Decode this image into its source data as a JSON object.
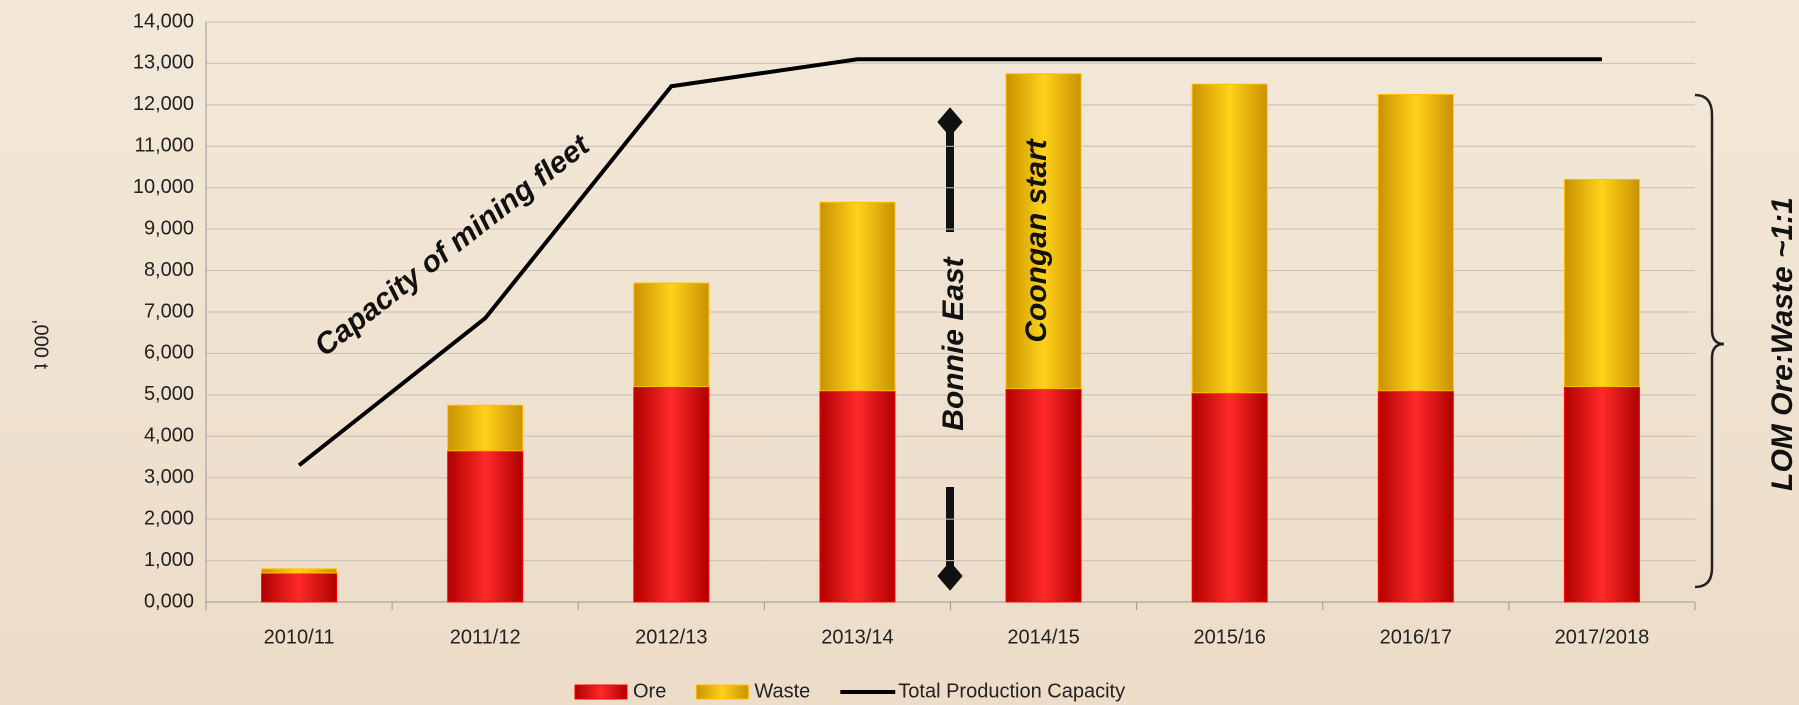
{
  "chart_data": {
    "type": "bar",
    "y_label": ",000 t",
    "categories": [
      "2010/11",
      "2011/12",
      "2012/13",
      "2013/14",
      "2014/15",
      "2015/16",
      "2016/17",
      "2017/2018"
    ],
    "series": [
      {
        "name": "Ore",
        "color": "#ff0000",
        "values": [
          700,
          3650,
          5200,
          5100,
          5150,
          5050,
          5100,
          5200
        ]
      },
      {
        "name": "Waste",
        "color": "#ffc000",
        "values": [
          100,
          1100,
          2500,
          4550,
          7600,
          7450,
          7150,
          5000
        ]
      },
      {
        "name": "Total Production Capacity",
        "type": "line",
        "color": "#000000",
        "values": [
          3300,
          6850,
          12450,
          13100,
          13100,
          13100,
          13100,
          13100
        ]
      }
    ],
    "annotations": [
      "Capacity of mining fleet",
      "Bonnie East",
      "Coongan start",
      "LOM Ore:Waste ~1:1"
    ],
    "ylim": [
      0,
      14000
    ],
    "yticks": [
      {
        "value": 0,
        "label": "0,000"
      },
      {
        "value": 1000,
        "label": "1,000"
      },
      {
        "value": 2000,
        "label": "2,000"
      },
      {
        "value": 3000,
        "label": "3,000"
      },
      {
        "value": 4000,
        "label": "4,000"
      },
      {
        "value": 5000,
        "label": "5,000"
      },
      {
        "value": 6000,
        "label": "6,000"
      },
      {
        "value": 7000,
        "label": "7,000"
      },
      {
        "value": 8000,
        "label": "8,000"
      },
      {
        "value": 9000,
        "label": "9,000"
      },
      {
        "value": 10000,
        "label": "10,000"
      },
      {
        "value": 11000,
        "label": "11,000"
      },
      {
        "value": 12000,
        "label": "12,000"
      },
      {
        "value": 13000,
        "label": "13,000"
      },
      {
        "value": 14000,
        "label": "14,000"
      }
    ],
    "grid": true,
    "legend": "bottom"
  }
}
